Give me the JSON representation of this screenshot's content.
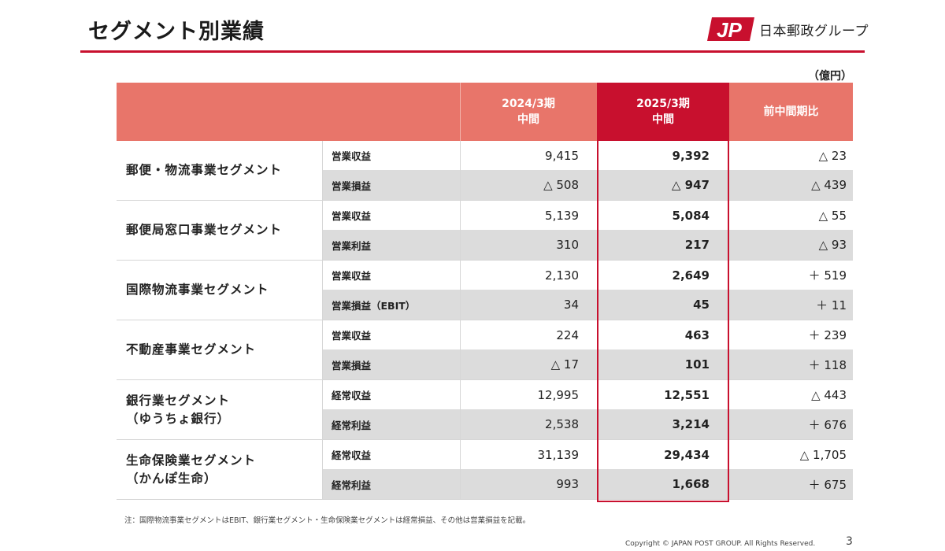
{
  "title": "セグメント別業績",
  "logo": {
    "text": "日本郵政グループ",
    "color": "#c8102e"
  },
  "unit": "（億円）",
  "header": {
    "col_prev": "2024/3期\n中間",
    "col_curr": "2025/3期\n中間",
    "col_diff": "前中間期比"
  },
  "segments": [
    {
      "name": "郵便・物流事業セグメント",
      "rows": [
        {
          "metric": "営業収益",
          "prev": "9,415",
          "curr": "9,392",
          "diff": "△ 23"
        },
        {
          "metric": "営業損益",
          "prev": "△ 508",
          "curr": "△ 947",
          "diff": "△ 439"
        }
      ]
    },
    {
      "name": "郵便局窓口事業セグメント",
      "rows": [
        {
          "metric": "営業収益",
          "prev": "5,139",
          "curr": "5,084",
          "diff": "△ 55"
        },
        {
          "metric": "営業利益",
          "prev": "310",
          "curr": "217",
          "diff": "△ 93"
        }
      ]
    },
    {
      "name": "国際物流事業セグメント",
      "rows": [
        {
          "metric": "営業収益",
          "prev": "2,130",
          "curr": "2,649",
          "diff": "＋ 519"
        },
        {
          "metric": "営業損益（EBIT）",
          "prev": "34",
          "curr": "45",
          "diff": "＋ 11"
        }
      ]
    },
    {
      "name": "不動産事業セグメント",
      "rows": [
        {
          "metric": "営業収益",
          "prev": "224",
          "curr": "463",
          "diff": "＋ 239"
        },
        {
          "metric": "営業損益",
          "prev": "△ 17",
          "curr": "101",
          "diff": "＋ 118"
        }
      ]
    },
    {
      "name": "銀行業セグメント\n（ゆうちょ銀行）",
      "rows": [
        {
          "metric": "経常収益",
          "prev": "12,995",
          "curr": "12,551",
          "diff": "△ 443"
        },
        {
          "metric": "経常利益",
          "prev": "2,538",
          "curr": "3,214",
          "diff": "＋ 676"
        }
      ]
    },
    {
      "name": "生命保険業セグメント\n（かんぽ生命）",
      "rows": [
        {
          "metric": "経常収益",
          "prev": "31,139",
          "curr": "29,434",
          "diff": "△ 1,705"
        },
        {
          "metric": "経常利益",
          "prev": "993",
          "curr": "1,668",
          "diff": "＋ 675"
        }
      ]
    }
  ],
  "note": "注：国際物流事業セグメントはEBIT、銀行業セグメント・生命保険業セグメントは経常損益、その他は営業損益を記載。",
  "copyright": "Copyright ©  JAPAN POST GROUP. All Rights Reserved.",
  "page_number": "3",
  "colors": {
    "accent": "#c8102e",
    "header_bg": "#e8756a",
    "stripe": "#dcdcdc"
  }
}
